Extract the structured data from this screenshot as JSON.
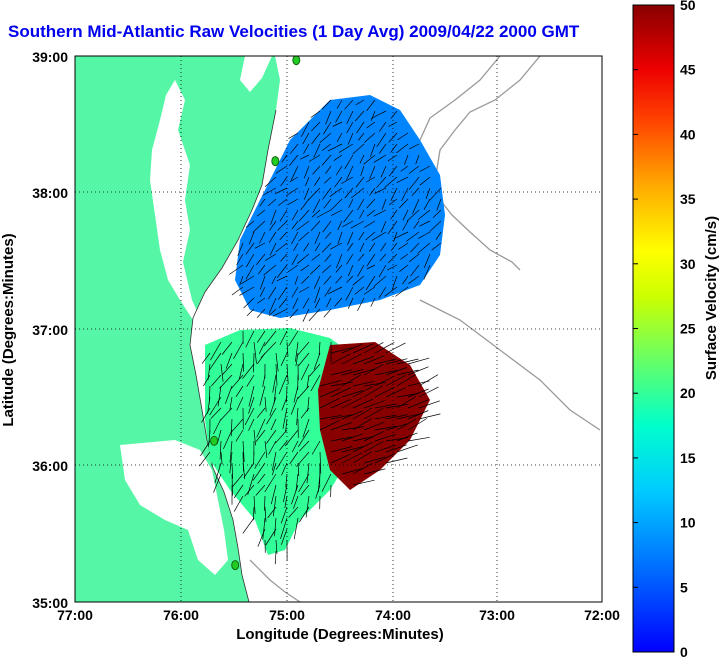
{
  "title": "Southern Mid-Atlantic Raw Velocities (1 Day Avg) 2009/04/22 2000 GMT",
  "x_label": "Longitude (Degrees:Minutes)",
  "y_label": "Latitude (Degrees:Minutes)",
  "x_ticks": [
    "77:00",
    "76:00",
    "75:00",
    "74:00",
    "73:00",
    "72:00"
  ],
  "y_ticks": [
    "39:00",
    "38:00",
    "37:00",
    "36:00",
    "35:00"
  ],
  "colorbar": {
    "label": "Surface Velocity (cm/s)",
    "ticks": [
      "50",
      "45",
      "40",
      "35",
      "30",
      "25",
      "20",
      "15",
      "10",
      "5",
      "0"
    ],
    "min": 0,
    "max": 50
  },
  "colors": {
    "land": "#55f7a6",
    "water": "#ffffff",
    "title": "#0000ee",
    "station": "#22cc22",
    "bathymetry": "#9a9a9a"
  },
  "map": {
    "lon_range": [
      -77,
      -72
    ],
    "lat_range": [
      35,
      39
    ],
    "stations": [
      {
        "lon": -74.9,
        "lat": 38.97
      },
      {
        "lon": -75.1,
        "lat": 38.23
      },
      {
        "lon": -75.68,
        "lat": 36.18
      },
      {
        "lon": -75.48,
        "lat": 35.27
      }
    ],
    "regions": [
      {
        "name": "northern-field",
        "speed_cm_s": 8
      },
      {
        "name": "southern-field",
        "speed_cm_s": 20
      },
      {
        "name": "southern-offshore-jet",
        "speed_cm_s": 50
      }
    ]
  }
}
